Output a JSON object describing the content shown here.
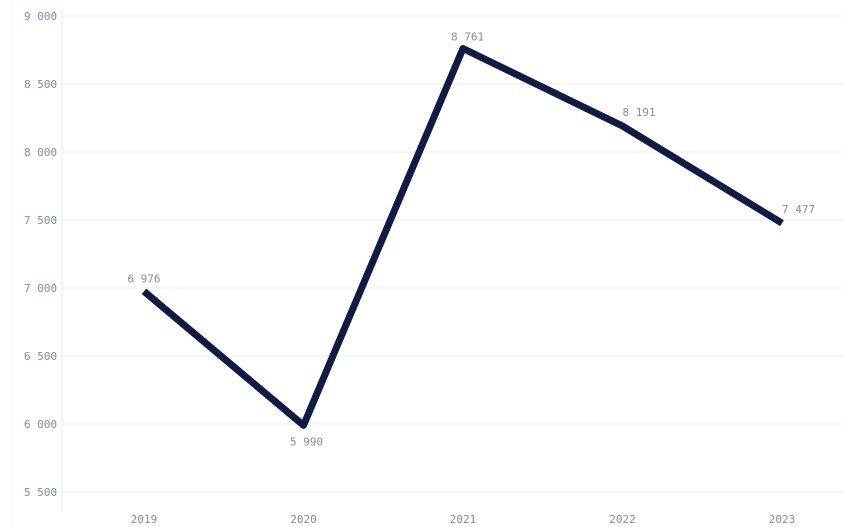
{
  "chart_data": {
    "type": "line",
    "title": "",
    "xlabel": "",
    "ylabel": "",
    "categories": [
      "2019",
      "2020",
      "2021",
      "2022",
      "2023"
    ],
    "series": [
      {
        "values": [
          6976,
          5990,
          8761,
          8191,
          7477
        ],
        "labels": [
          "6 976",
          "5 990",
          "8 761",
          "8 191",
          "7 477"
        ],
        "color": "#0d1b45"
      }
    ],
    "ylim": [
      5500,
      9000
    ],
    "yticks": [
      5500,
      6000,
      6500,
      7000,
      7500,
      8000,
      8500,
      9000
    ],
    "ytick_labels": [
      "5 500",
      "6 000",
      "6 500",
      "7 000",
      "7 500",
      "8 000",
      "8 500",
      "9 000"
    ],
    "grid": true,
    "legend": "none"
  }
}
